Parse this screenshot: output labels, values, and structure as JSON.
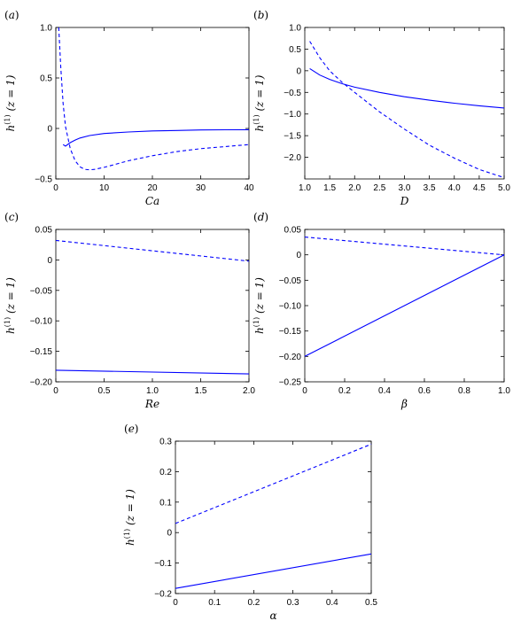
{
  "chart_data": [
    {
      "type": "line",
      "panel_label": "(a)",
      "xlabel": "Ca",
      "ylabel": "h(1) (z = 1)",
      "xlim": [
        0,
        40
      ],
      "ylim": [
        -0.5,
        1.0
      ],
      "xticks": [
        0,
        10,
        20,
        30,
        40
      ],
      "xtick_labels": [
        "0",
        "10",
        "20",
        "30",
        "40"
      ],
      "yticks": [
        -0.5,
        0,
        0.5,
        1.0
      ],
      "ytick_labels": [
        "−0.5",
        "0",
        "0.5",
        "1.0"
      ],
      "series": [
        {
          "style": "dashed",
          "x": [
            0.6,
            1.0,
            1.5,
            2,
            3,
            4,
            5,
            6,
            7,
            8,
            10,
            12,
            15,
            20,
            25,
            30,
            35,
            40
          ],
          "y": [
            1.0,
            0.62,
            0.25,
            0.02,
            -0.2,
            -0.32,
            -0.38,
            -0.405,
            -0.41,
            -0.405,
            -0.385,
            -0.36,
            -0.32,
            -0.27,
            -0.23,
            -0.2,
            -0.18,
            -0.16
          ]
        },
        {
          "style": "solid",
          "x": [
            1.5,
            2,
            3,
            4,
            5,
            7,
            10,
            15,
            20,
            25,
            30,
            35,
            40
          ],
          "y": [
            -0.16,
            -0.175,
            -0.14,
            -0.115,
            -0.095,
            -0.07,
            -0.05,
            -0.035,
            -0.025,
            -0.02,
            -0.015,
            -0.013,
            -0.012
          ]
        }
      ]
    },
    {
      "type": "line",
      "panel_label": "(b)",
      "xlabel": "D",
      "ylabel": "h(1) (z = 1)",
      "xlim": [
        1.0,
        5.0
      ],
      "ylim": [
        -2.5,
        1.0
      ],
      "xticks": [
        1.0,
        1.5,
        2.0,
        2.5,
        3.0,
        3.5,
        4.0,
        4.5,
        5.0
      ],
      "xtick_labels": [
        "1.0",
        "1.5",
        "2.0",
        "2.5",
        "3.0",
        "3.5",
        "4.0",
        "4.5",
        "5.0"
      ],
      "yticks": [
        -2.0,
        -1.5,
        -1.0,
        -0.5,
        0,
        0.5,
        1.0
      ],
      "ytick_labels": [
        "−2.0",
        "−1.5",
        "−1.0",
        "−0.5",
        "0",
        "0.5",
        "1.0"
      ],
      "series": [
        {
          "style": "dashed",
          "x": [
            1.1,
            1.3,
            1.5,
            1.75,
            2.0,
            2.5,
            3.0,
            3.5,
            4.0,
            4.5,
            5.0
          ],
          "y": [
            0.68,
            0.3,
            0.0,
            -0.27,
            -0.5,
            -0.95,
            -1.35,
            -1.72,
            -2.02,
            -2.28,
            -2.47
          ]
        },
        {
          "style": "solid",
          "x": [
            1.1,
            1.3,
            1.5,
            1.75,
            2.0,
            2.5,
            3.0,
            3.5,
            4.0,
            4.5,
            5.0
          ],
          "y": [
            0.05,
            -0.1,
            -0.2,
            -0.3,
            -0.38,
            -0.5,
            -0.6,
            -0.68,
            -0.75,
            -0.81,
            -0.86
          ]
        }
      ]
    },
    {
      "type": "line",
      "panel_label": "(c)",
      "xlabel": "Re",
      "ylabel": "h(1) (z = 1)",
      "xlim": [
        0,
        2.0
      ],
      "ylim": [
        -0.2,
        0.05
      ],
      "xticks": [
        0,
        0.5,
        1.0,
        1.5,
        2.0
      ],
      "xtick_labels": [
        "0",
        "0.5",
        "1.0",
        "1.5",
        "2.0"
      ],
      "yticks": [
        -0.2,
        -0.15,
        -0.1,
        -0.05,
        0,
        0.05
      ],
      "ytick_labels": [
        "−0.20",
        "−0.15",
        "−0.10",
        "−0.05",
        "0",
        "0.05"
      ],
      "series": [
        {
          "style": "dashed",
          "x": [
            0,
            2.0
          ],
          "y": [
            0.032,
            -0.002
          ]
        },
        {
          "style": "solid",
          "x": [
            0,
            2.0
          ],
          "y": [
            -0.181,
            -0.187
          ]
        }
      ]
    },
    {
      "type": "line",
      "panel_label": "(d)",
      "xlabel": "β",
      "ylabel": "h(1) (z = 1)",
      "xlim": [
        0,
        1.0
      ],
      "ylim": [
        -0.25,
        0.05
      ],
      "xticks": [
        0,
        0.2,
        0.4,
        0.6,
        0.8,
        1.0
      ],
      "xtick_labels": [
        "0",
        "0.2",
        "0.4",
        "0.6",
        "0.8",
        "1.0"
      ],
      "yticks": [
        -0.25,
        -0.2,
        -0.15,
        -0.1,
        -0.05,
        0,
        0.05
      ],
      "ytick_labels": [
        "−0.25",
        "−0.20",
        "−0.15",
        "−0.10",
        "−0.05",
        "0",
        "0.05"
      ],
      "series": [
        {
          "style": "dashed",
          "x": [
            0,
            1.0
          ],
          "y": [
            0.035,
            0.0
          ]
        },
        {
          "style": "solid",
          "x": [
            0,
            1.0
          ],
          "y": [
            -0.2,
            0.0
          ]
        }
      ]
    },
    {
      "type": "line",
      "panel_label": "(e)",
      "xlabel": "α",
      "ylabel": "h(1) (z = 1)",
      "xlim": [
        0,
        0.5
      ],
      "ylim": [
        -0.2,
        0.3
      ],
      "xticks": [
        0,
        0.1,
        0.2,
        0.3,
        0.4,
        0.5
      ],
      "xtick_labels": [
        "0",
        "0.1",
        "0.2",
        "0.3",
        "0.4",
        "0.5"
      ],
      "yticks": [
        -0.2,
        -0.1,
        0,
        0.1,
        0.2,
        0.3
      ],
      "ytick_labels": [
        "−0.2",
        "−0.1",
        "0",
        "0.1",
        "0.2",
        "0.3"
      ],
      "series": [
        {
          "style": "dashed",
          "x": [
            0,
            0.5
          ],
          "y": [
            0.03,
            0.29
          ]
        },
        {
          "style": "solid",
          "x": [
            0,
            0.5
          ],
          "y": [
            -0.183,
            -0.07
          ]
        }
      ]
    }
  ]
}
